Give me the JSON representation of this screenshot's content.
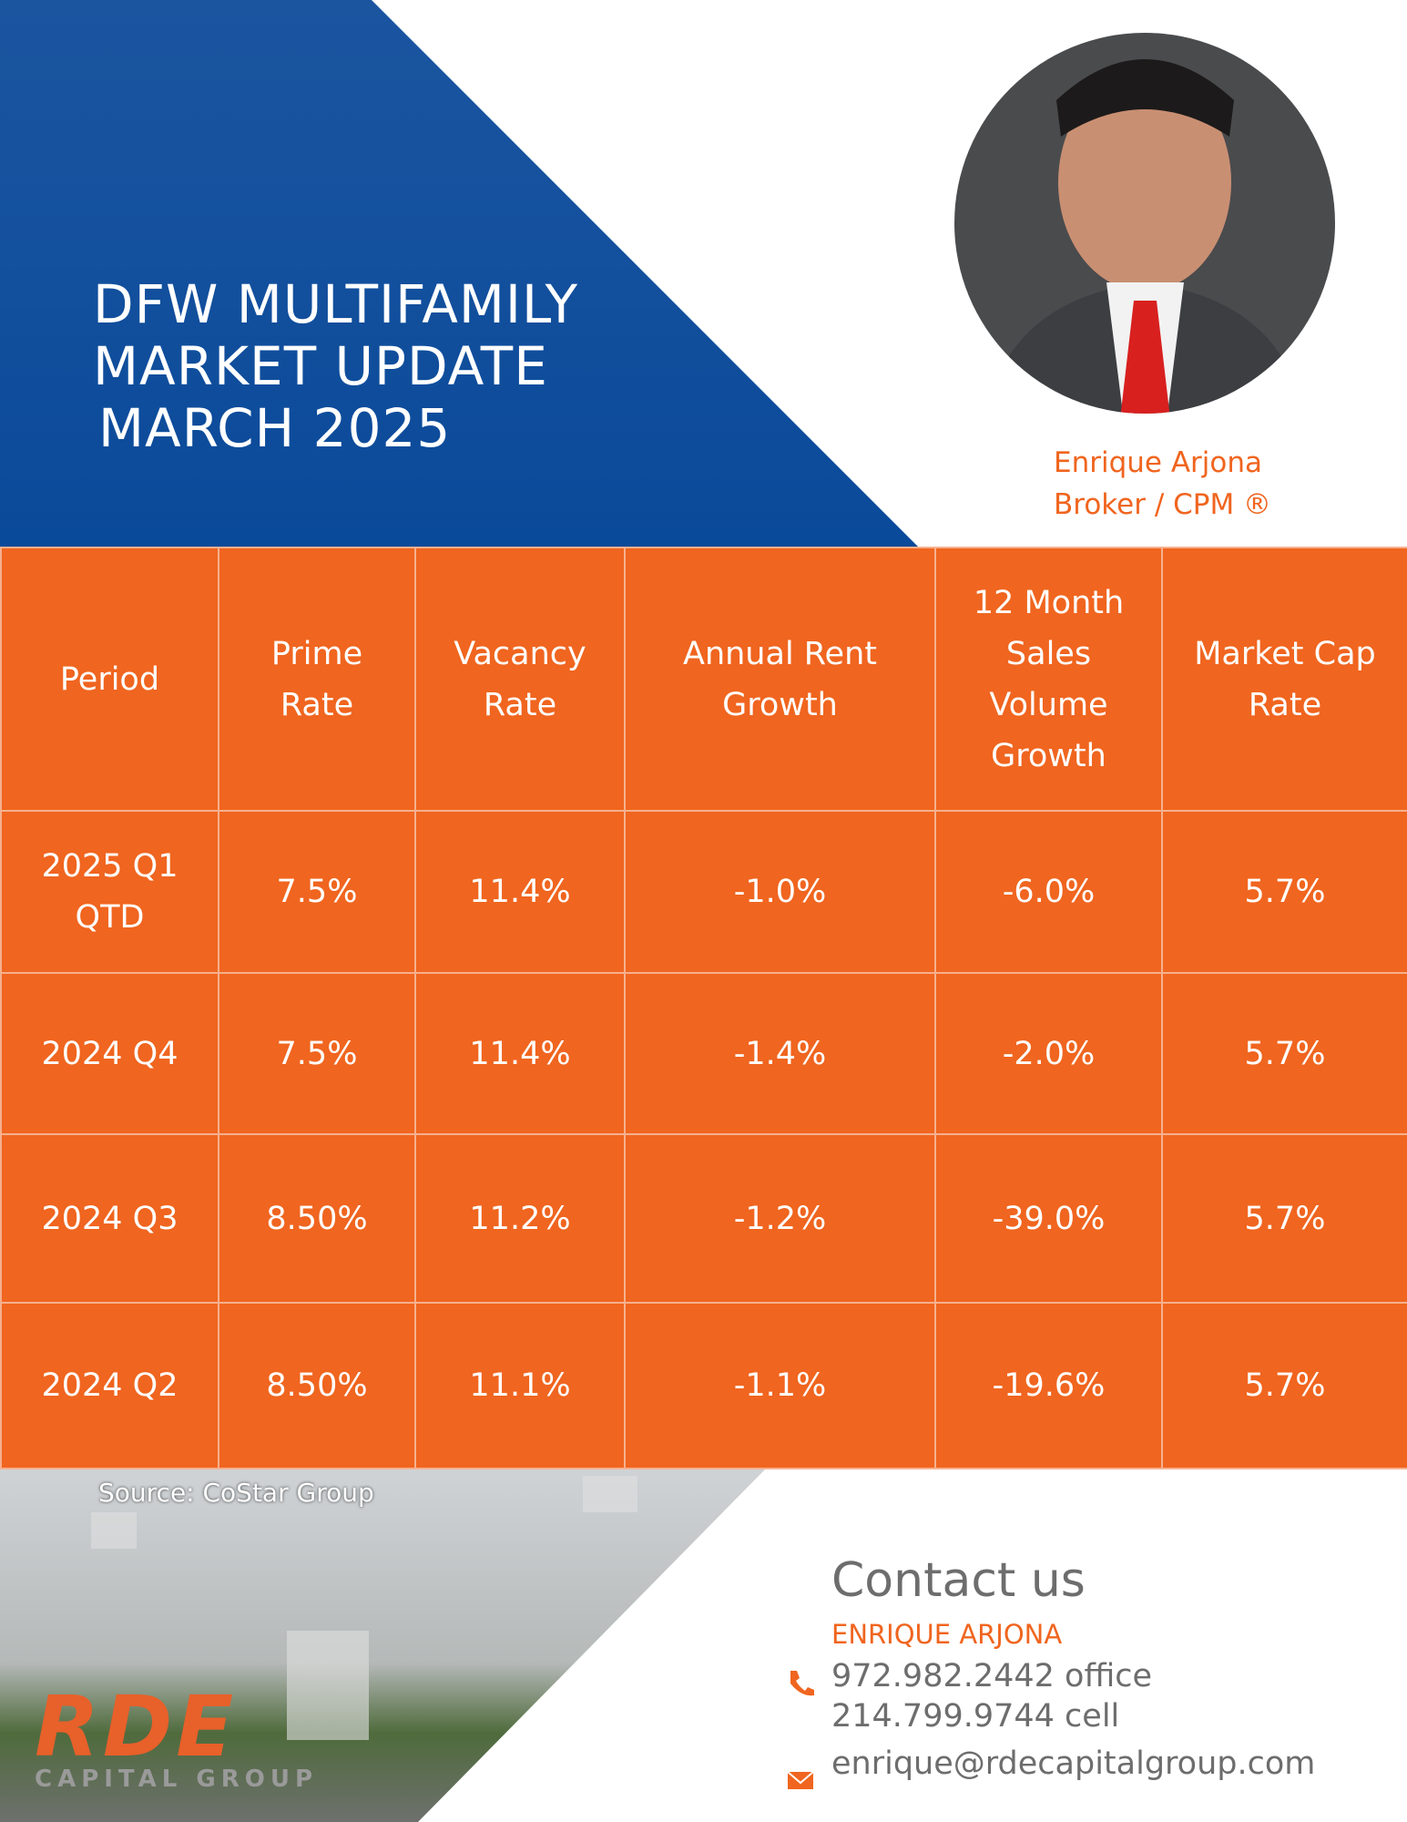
{
  "header": {
    "title_lines": [
      "DFW MULTIFAMILY",
      "MARKET UPDATE",
      "MARCH 2025"
    ]
  },
  "agent": {
    "name": "Enrique Arjona",
    "title": "Broker / CPM ®"
  },
  "table": {
    "headers": [
      "Period",
      "Prime Rate",
      "Vacancy Rate",
      "Annual Rent Growth",
      "12 Month Sales Volume Growth",
      "Market Cap Rate"
    ],
    "rows": [
      [
        "2025 Q1 QTD",
        "7.5%",
        "11.4%",
        "-1.0%",
        "-6.0%",
        "5.7%"
      ],
      [
        "2024 Q4",
        "7.5%",
        "11.4%",
        "-1.4%",
        "-2.0%",
        "5.7%"
      ],
      [
        "2024 Q3",
        "8.50%",
        "11.2%",
        "-1.2%",
        "-39.0%",
        "5.7%"
      ],
      [
        "2024 Q2",
        "8.50%",
        "11.1%",
        "-1.1%",
        "-19.6%",
        "5.7%"
      ]
    ]
  },
  "source": "Source: CoStar Group",
  "contact": {
    "heading": "Contact us",
    "name": "ENRIQUE ARJONA",
    "office": "972.982.2442 office",
    "cell": "214.799.9744 cell",
    "email": "enrique@rdecapitalgroup.com"
  },
  "logo": {
    "text": "RDE",
    "subtitle": "CAPITAL GROUP"
  }
}
